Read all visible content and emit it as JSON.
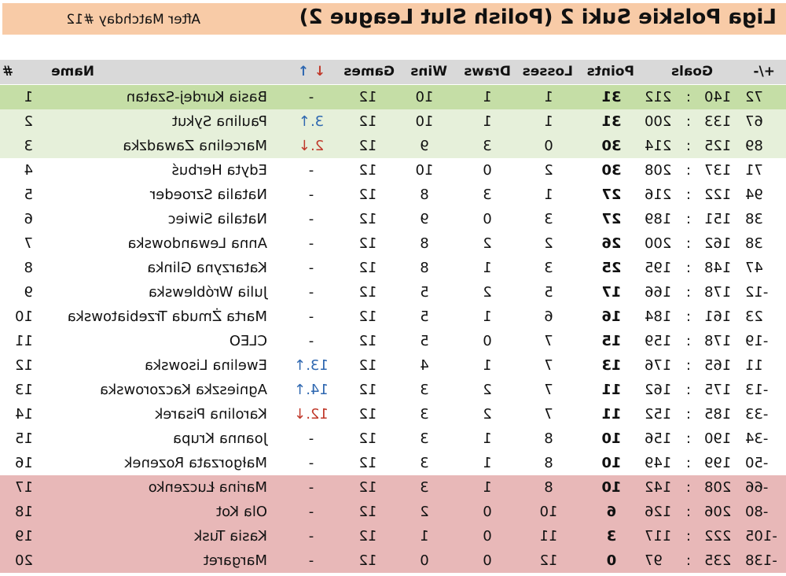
{
  "title": "Liga Polskie Suki 2 (Polish Slut League 2)",
  "subtitle": "After Matchday #12",
  "colors": {
    "banner": "#f8cba7",
    "header": "#d9d9d9",
    "leader": "#c5dea6",
    "promotion": "#e6f0da",
    "relegation": "#e8b8b8",
    "up": "#2e67b0",
    "down": "#c0392b"
  },
  "headers": {
    "rank": "#",
    "name": "Name",
    "move_up": "↑",
    "move_down": "↓",
    "games": "Games",
    "wins": "Wins",
    "draws": "Draws",
    "losses": "Losses",
    "points": "Points",
    "goals": "Goals",
    "diff": "+/-"
  },
  "rows": [
    {
      "rank": "1",
      "name": "Basia Kurdej-Szatan",
      "move": "-",
      "games": "12",
      "wins": "10",
      "draws": "1",
      "losses": "1",
      "points": "31",
      "gf": "212",
      "sep": ":",
      "ga": "140",
      "diff": "72",
      "zone": "leader"
    },
    {
      "rank": "2",
      "name": "Paulina Sykut",
      "move": "3.↑",
      "games": "12",
      "wins": "10",
      "draws": "1",
      "losses": "1",
      "points": "31",
      "gf": "200",
      "sep": ":",
      "ga": "133",
      "diff": "67",
      "zone": "promotion"
    },
    {
      "rank": "3",
      "name": "Marcelina Zawadzka",
      "move": "2.↓",
      "games": "12",
      "wins": "9",
      "draws": "3",
      "losses": "0",
      "points": "30",
      "gf": "214",
      "sep": ":",
      "ga": "125",
      "diff": "89",
      "zone": "promotion"
    },
    {
      "rank": "4",
      "name": "Edyta Herbuś",
      "move": "-",
      "games": "12",
      "wins": "10",
      "draws": "0",
      "losses": "2",
      "points": "30",
      "gf": "208",
      "sep": ":",
      "ga": "137",
      "diff": "71",
      "zone": "none"
    },
    {
      "rank": "5",
      "name": "Natalia Szroeder",
      "move": "-",
      "games": "12",
      "wins": "8",
      "draws": "3",
      "losses": "1",
      "points": "27",
      "gf": "216",
      "sep": ":",
      "ga": "122",
      "diff": "94",
      "zone": "none"
    },
    {
      "rank": "6",
      "name": "Natalia Siwiec",
      "move": "-",
      "games": "12",
      "wins": "9",
      "draws": "0",
      "losses": "3",
      "points": "27",
      "gf": "189",
      "sep": ":",
      "ga": "151",
      "diff": "38",
      "zone": "none"
    },
    {
      "rank": "7",
      "name": "Anna Lewandowska",
      "move": "-",
      "games": "12",
      "wins": "8",
      "draws": "2",
      "losses": "2",
      "points": "26",
      "gf": "200",
      "sep": ":",
      "ga": "162",
      "diff": "38",
      "zone": "none"
    },
    {
      "rank": "8",
      "name": "Katarzyna Glinka",
      "move": "-",
      "games": "12",
      "wins": "8",
      "draws": "1",
      "losses": "3",
      "points": "25",
      "gf": "195",
      "sep": ":",
      "ga": "148",
      "diff": "47",
      "zone": "none"
    },
    {
      "rank": "9",
      "name": "Julia Wróblewska",
      "move": "-",
      "games": "12",
      "wins": "5",
      "draws": "2",
      "losses": "5",
      "points": "17",
      "gf": "166",
      "sep": ":",
      "ga": "178",
      "diff": "-12",
      "zone": "none"
    },
    {
      "rank": "10",
      "name": "Marta Żmuda Trzebiatowska",
      "move": "-",
      "games": "12",
      "wins": "5",
      "draws": "1",
      "losses": "6",
      "points": "16",
      "gf": "184",
      "sep": ":",
      "ga": "161",
      "diff": "23",
      "zone": "none"
    },
    {
      "rank": "11",
      "name": "CLEO",
      "move": "-",
      "games": "12",
      "wins": "5",
      "draws": "0",
      "losses": "7",
      "points": "15",
      "gf": "159",
      "sep": ":",
      "ga": "178",
      "diff": "-19",
      "zone": "none"
    },
    {
      "rank": "12",
      "name": "Ewelina Lisowska",
      "move": "13.↑",
      "games": "12",
      "wins": "4",
      "draws": "1",
      "losses": "7",
      "points": "13",
      "gf": "176",
      "sep": ":",
      "ga": "165",
      "diff": "11",
      "zone": "none"
    },
    {
      "rank": "13",
      "name": "Agnieszka Kaczorowska",
      "move": "14.↑",
      "games": "12",
      "wins": "3",
      "draws": "2",
      "losses": "7",
      "points": "11",
      "gf": "162",
      "sep": ":",
      "ga": "175",
      "diff": "-13",
      "zone": "none"
    },
    {
      "rank": "14",
      "name": "Karolina Pisarek",
      "move": "12.↓",
      "games": "12",
      "wins": "3",
      "draws": "2",
      "losses": "7",
      "points": "11",
      "gf": "152",
      "sep": ":",
      "ga": "185",
      "diff": "-33",
      "zone": "none"
    },
    {
      "rank": "15",
      "name": "Joanna Krupa",
      "move": "-",
      "games": "12",
      "wins": "3",
      "draws": "1",
      "losses": "8",
      "points": "10",
      "gf": "156",
      "sep": ":",
      "ga": "190",
      "diff": "-34",
      "zone": "none"
    },
    {
      "rank": "16",
      "name": "Małgorzata Rozenek",
      "move": "-",
      "games": "12",
      "wins": "3",
      "draws": "1",
      "losses": "8",
      "points": "10",
      "gf": "149",
      "sep": ":",
      "ga": "199",
      "diff": "-50",
      "zone": "none"
    },
    {
      "rank": "17",
      "name": "Marina Łuczenko",
      "move": "-",
      "games": "12",
      "wins": "3",
      "draws": "1",
      "losses": "8",
      "points": "10",
      "gf": "142",
      "sep": ":",
      "ga": "208",
      "diff": "-66",
      "zone": "relegation"
    },
    {
      "rank": "18",
      "name": "Ola Kot",
      "move": "-",
      "games": "12",
      "wins": "2",
      "draws": "0",
      "losses": "10",
      "points": "6",
      "gf": "126",
      "sep": ":",
      "ga": "206",
      "diff": "-80",
      "zone": "relegation"
    },
    {
      "rank": "19",
      "name": "Kasia Tusk",
      "move": "-",
      "games": "12",
      "wins": "1",
      "draws": "0",
      "losses": "11",
      "points": "3",
      "gf": "117",
      "sep": ":",
      "ga": "222",
      "diff": "-105",
      "zone": "relegation"
    },
    {
      "rank": "20",
      "name": "Margaret",
      "move": "-",
      "games": "12",
      "wins": "0",
      "draws": "0",
      "losses": "12",
      "points": "0",
      "gf": "97",
      "sep": ":",
      "ga": "235",
      "diff": "-138",
      "zone": "relegation"
    }
  ]
}
